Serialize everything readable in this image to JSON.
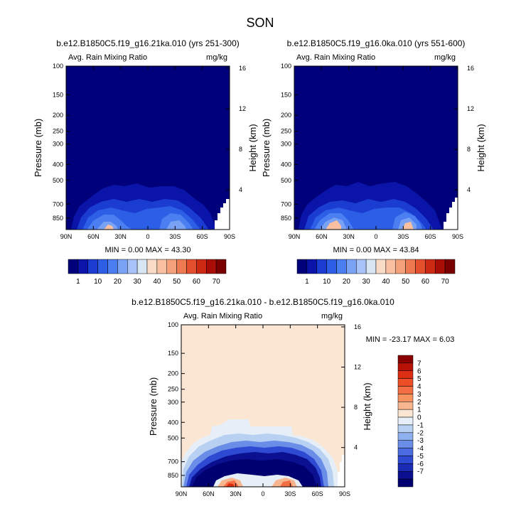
{
  "figure": {
    "title": "SON",
    "tick_labels": {
      "lat": [
        "90N",
        "60N",
        "30N",
        "0",
        "30S",
        "60S",
        "90S"
      ],
      "pressure": [
        "100",
        "150",
        "200",
        "250",
        "300",
        "400",
        "500",
        "700",
        "850"
      ],
      "height": [
        "16",
        "12",
        "8",
        "4"
      ]
    }
  },
  "chart_data": [
    {
      "type": "heatmap",
      "id": "left",
      "title": "b.e12.B1850C5.f19_g16.21ka.010 (yrs 251-300)",
      "left_label": "Avg. Rain Mixing Ratio",
      "right_label": "mg/kg",
      "xlabel": "",
      "ylabel": "Pressure (mb)",
      "y2label": "Height (km)",
      "xlim": [
        "90N",
        "90S"
      ],
      "ylim": [
        100,
        1000
      ],
      "stats": "MIN =  0.00  MAX = 43.30",
      "min": 0.0,
      "max": 43.3
    },
    {
      "type": "heatmap",
      "id": "middle",
      "title": "b.e12.B1850C5.f19_g16.0ka.010 (yrs 551-600)",
      "left_label": "Avg. Rain Mixing Ratio",
      "right_label": "mg/kg",
      "xlabel": "",
      "ylabel": "Pressure (mb)",
      "y2label": "Height (km)",
      "xlim": [
        "90N",
        "90S"
      ],
      "ylim": [
        100,
        1000
      ],
      "stats": "MIN =  0.00  MAX = 43.84",
      "min": 0.0,
      "max": 43.84
    },
    {
      "type": "heatmap",
      "id": "diff",
      "title": "b.e12.B1850C5.f19_g16.21ka.010 - b.e12.B1850C5.f19_g16.0ka.010",
      "left_label": "Avg. Rain Mixing Ratio",
      "right_label": "mg/kg",
      "xlabel": "",
      "ylabel": "Pressure (mb)",
      "y2label": "Height (km)",
      "xlim": [
        "90N",
        "90S"
      ],
      "ylim": [
        100,
        1000
      ],
      "stats": "MIN = -23.17  MAX =   6.03",
      "min": -23.17,
      "max": 6.03
    }
  ],
  "colorbars": {
    "main": {
      "labels": [
        "1",
        "10",
        "20",
        "30",
        "40",
        "50",
        "60",
        "70"
      ],
      "colors": [
        "#00007a",
        "#0a14a8",
        "#1a3cd0",
        "#2d5ee6",
        "#4b7ef0",
        "#7aa2f4",
        "#a6c2f6",
        "#d8e6f4",
        "#f8dcc8",
        "#f8c0a0",
        "#f4a07a",
        "#ee7a52",
        "#e4502e",
        "#cc2a12",
        "#a80e06",
        "#7a0000"
      ]
    },
    "diff": {
      "labels": [
        "7",
        "6",
        "5",
        "4",
        "3",
        "2",
        "1",
        "0",
        "-1",
        "-2",
        "-3",
        "-4",
        "-5",
        "-6",
        "-7"
      ],
      "colors": [
        "#8a0000",
        "#b81206",
        "#dc2e12",
        "#ee4e26",
        "#f46e44",
        "#f8925e",
        "#f8b690",
        "#fbe6d4",
        "#e6eef8",
        "#b8d0f2",
        "#8fb0ee",
        "#6a8ee8",
        "#4a6ce0",
        "#2e4ad2",
        "#1a2cb4",
        "#0a1090",
        "#000070"
      ]
    }
  }
}
